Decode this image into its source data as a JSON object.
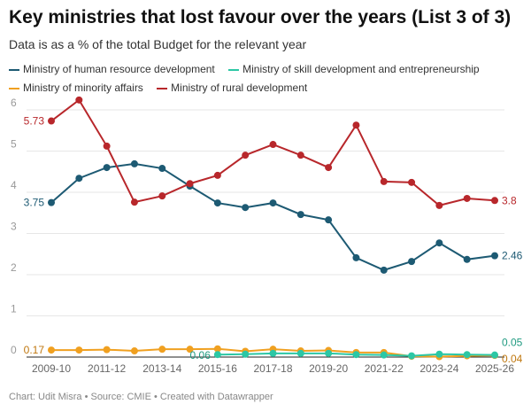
{
  "chart_data": {
    "type": "line",
    "title": "Key ministries that lost favour over the years (List 3 of 3)",
    "subtitle": "Data is as a % of the total Budget for the relevant year",
    "x": [
      "2009-10",
      "2010-11",
      "2011-12",
      "2012-13",
      "2013-14",
      "2014-15",
      "2015-16",
      "2016-17",
      "2017-18",
      "2018-19",
      "2019-20",
      "2020-21",
      "2021-22",
      "2022-23",
      "2023-24",
      "2024-25",
      "2025-26"
    ],
    "xticks": [
      "2009-10",
      "2011-12",
      "2013-14",
      "2015-16",
      "2017-18",
      "2019-20",
      "2021-22",
      "2023-24",
      "2025-26"
    ],
    "yticks": [
      "0",
      "1",
      "2",
      "3",
      "4",
      "5",
      "6"
    ],
    "ylim": [
      0,
      6.3
    ],
    "legend_placement": "top",
    "series": [
      {
        "name": "Ministry of human resource development",
        "color": "#1d5a73",
        "values": [
          3.75,
          4.34,
          4.6,
          4.69,
          4.58,
          4.15,
          3.74,
          3.63,
          3.74,
          3.46,
          3.33,
          2.41,
          2.11,
          2.32,
          2.77,
          2.37,
          2.46
        ],
        "start_label": "3.75",
        "end_label": "2.46"
      },
      {
        "name": "Ministry of skill development and entrepreneurship",
        "color": "#2cc7a5",
        "values": [
          null,
          null,
          null,
          null,
          null,
          null,
          0.06,
          0.07,
          0.09,
          0.09,
          0.09,
          0.06,
          0.05,
          0.03,
          0.07,
          0.06,
          0.05
        ],
        "start_label": "0.06",
        "end_label": "0.05"
      },
      {
        "name": "Ministry of minority affairs",
        "color": "#f0a020",
        "values": [
          0.17,
          0.17,
          0.18,
          0.15,
          0.19,
          0.19,
          0.2,
          0.14,
          0.19,
          0.15,
          0.16,
          0.11,
          0.11,
          0.02,
          0.01,
          0.03,
          0.04
        ],
        "start_label": "0.17",
        "end_label": "0.04"
      },
      {
        "name": "Ministry of rural development",
        "color": "#b8272b",
        "values": [
          5.73,
          6.24,
          5.12,
          3.76,
          3.91,
          4.21,
          4.41,
          4.9,
          5.16,
          4.9,
          4.6,
          5.63,
          4.26,
          4.24,
          3.68,
          3.85,
          3.8
        ],
        "start_label": "5.73",
        "end_label": "3.8"
      }
    ]
  },
  "footer": "Chart: Udit Misra • Source: CMIE • Created with Datawrapper"
}
